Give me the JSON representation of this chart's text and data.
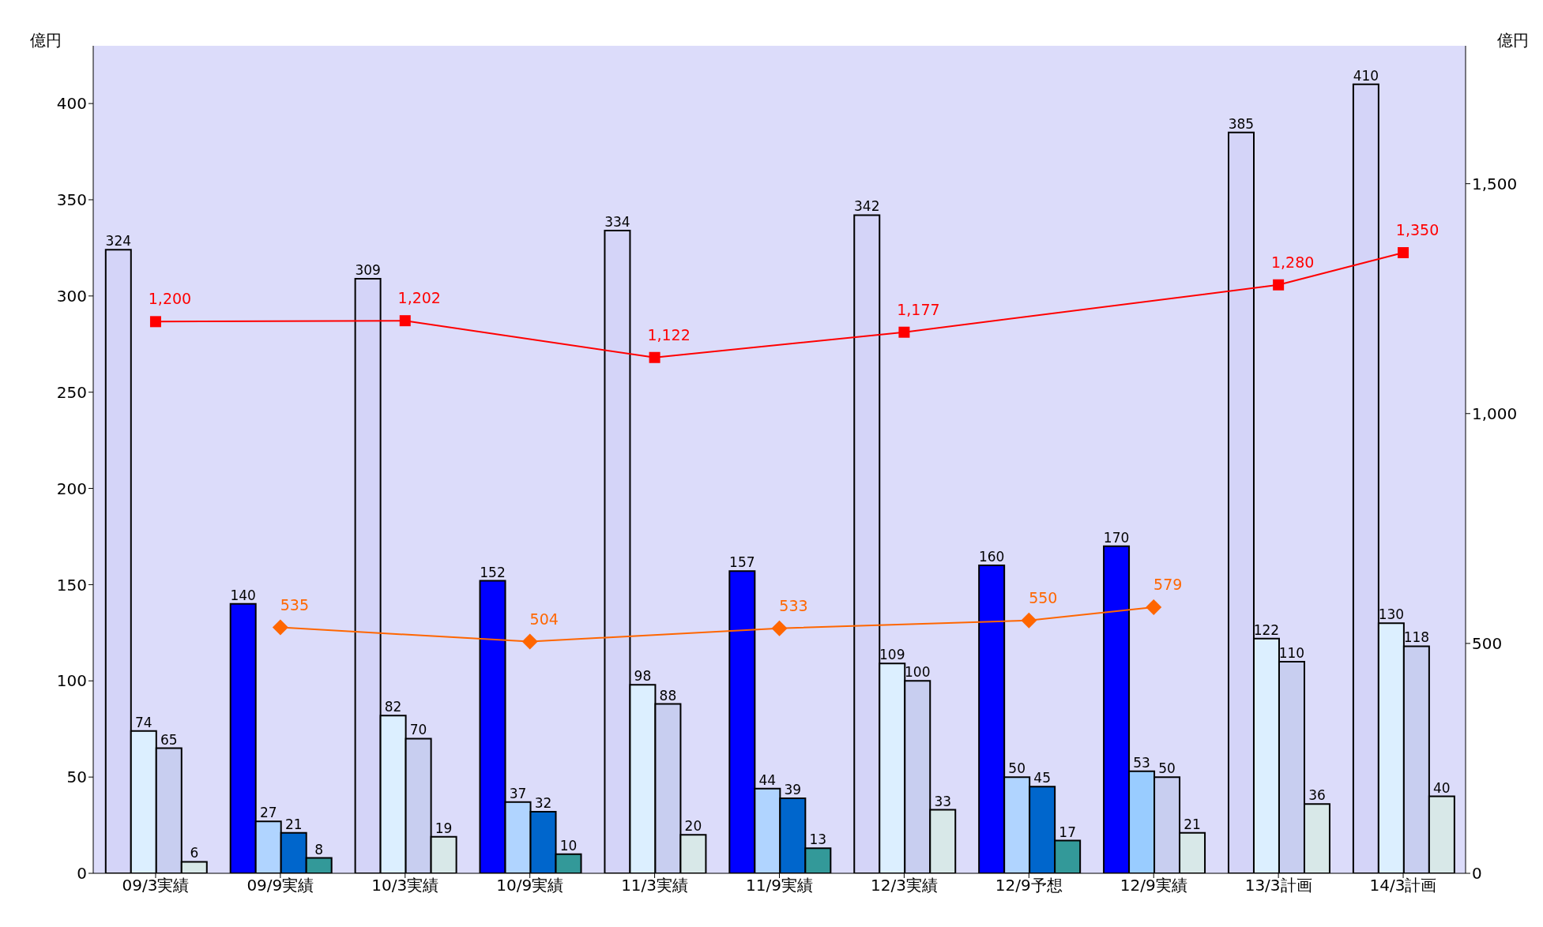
{
  "chart_data": {
    "type": "bar",
    "ylabel": "億円",
    "y2label": "億円",
    "categories": [
      "09/3実績",
      "09/9実績",
      "10/3実績",
      "10/9実績",
      "11/3実績",
      "11/9実績",
      "12/3実績",
      "12/9予想",
      "12/9実績",
      "13/3計画",
      "14/3計画"
    ],
    "ylim": [
      0,
      430
    ],
    "yticks": [
      0,
      50,
      100,
      150,
      200,
      250,
      300,
      350,
      400
    ],
    "y2lim": [
      0,
      1800
    ],
    "y2ticks": [
      {
        "value": 0,
        "label": "0"
      },
      {
        "value": 500,
        "label": "500"
      },
      {
        "value": 1000,
        "label": "1,000"
      },
      {
        "value": 1500,
        "label": "1,500"
      }
    ],
    "data_labels": true,
    "grid": false,
    "series": [
      {
        "colors": [
          "#d4d4f8",
          "#0000ff",
          "#d4d4f8",
          "#0000ff",
          "#d4d4f8",
          "#0000ff",
          "#d4d4f8",
          "#0000ff",
          "#0000ff",
          "#d4d4f8",
          "#d4d4f8"
        ],
        "values": [
          324,
          140,
          309,
          152,
          334,
          157,
          342,
          160,
          170,
          385,
          410
        ]
      },
      {
        "colors": [
          "#dcefff",
          "#b0d4ff",
          "#dcefff",
          "#b0d4ff",
          "#dcefff",
          "#b0d4ff",
          "#dcefff",
          "#b0d4ff",
          "#99ccff",
          "#dcefff",
          "#dcefff"
        ],
        "values": [
          74,
          27,
          82,
          37,
          98,
          44,
          109,
          50,
          53,
          122,
          130
        ]
      },
      {
        "colors": [
          "#c8cef0",
          "#0066cc",
          "#c8cef0",
          "#0066cc",
          "#c8cef0",
          "#0066cc",
          "#c8cef0",
          "#0066cc",
          "#c8cef0",
          "#c8cef0",
          "#c8cef0"
        ],
        "values": [
          65,
          21,
          70,
          32,
          88,
          39,
          100,
          45,
          50,
          110,
          118
        ]
      },
      {
        "colors": [
          "#d8e8e8",
          "#339999",
          "#d8e8e8",
          "#339999",
          "#d8e8e8",
          "#339999",
          "#d8e8e8",
          "#339999",
          "#d8e8e8",
          "#d8e8e8",
          "#d8e8e8"
        ],
        "values": [
          6,
          8,
          19,
          10,
          20,
          13,
          33,
          17,
          21,
          36,
          40
        ]
      },
      {
        "type": "line",
        "axis": "y2",
        "color": "#ff0000",
        "marker": "square",
        "values": [
          1200,
          null,
          1202,
          null,
          1122,
          null,
          1177,
          null,
          null,
          1280,
          1350
        ],
        "value_labels": [
          "1,200",
          null,
          "1,202",
          null,
          "1,122",
          null,
          "1,177",
          null,
          null,
          "1,280",
          "1,350"
        ]
      },
      {
        "type": "line",
        "axis": "y2",
        "color": "#ff6600",
        "marker": "diamond",
        "values": [
          null,
          535,
          null,
          504,
          null,
          533,
          null,
          550,
          579,
          null,
          null
        ]
      }
    ]
  }
}
